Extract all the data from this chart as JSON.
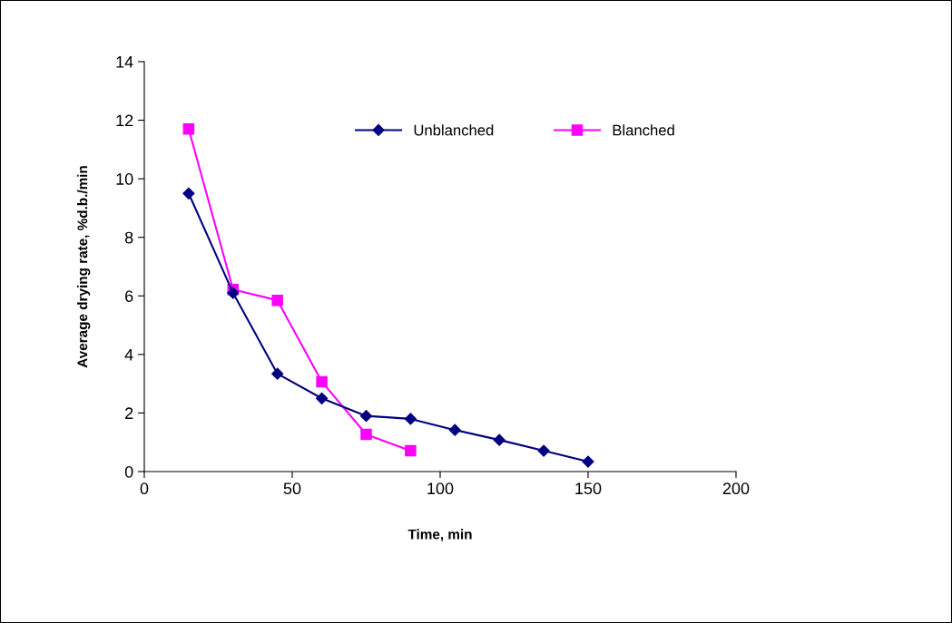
{
  "chart_data": {
    "type": "line",
    "xlabel": "Time, min",
    "ylabel": "Average drying rate, %d.b./min",
    "xlim": [
      0,
      200
    ],
    "xticks": [
      0,
      50,
      100,
      150,
      200
    ],
    "ylim": [
      0,
      14
    ],
    "yticks": [
      0,
      2,
      4,
      6,
      8,
      10,
      12,
      14
    ],
    "grid": false,
    "legend": "top right",
    "line_style": "solid",
    "series": [
      {
        "name": "Unblanched",
        "color": "#000080",
        "marker": "diamond",
        "x": [
          15,
          30,
          45,
          60,
          75,
          90,
          105,
          120,
          135,
          150
        ],
        "values": [
          9.5,
          6.1,
          3.34,
          2.5,
          1.9,
          1.8,
          1.42,
          1.08,
          0.71,
          0.34
        ]
      },
      {
        "name": "Blanched",
        "color": "#ff00ff",
        "marker": "square",
        "x": [
          15,
          30,
          45,
          60,
          75,
          90
        ],
        "values": [
          11.7,
          6.22,
          5.85,
          3.07,
          1.27,
          0.71
        ]
      }
    ]
  }
}
